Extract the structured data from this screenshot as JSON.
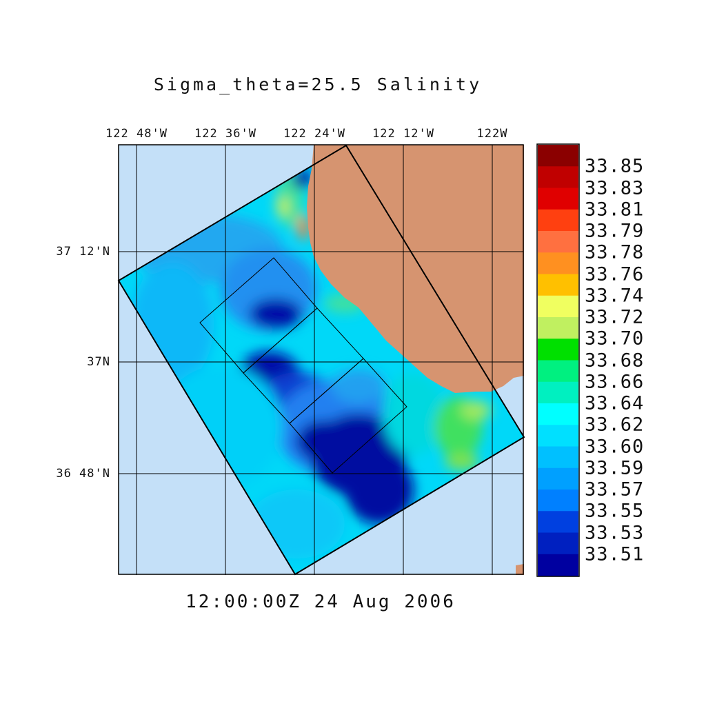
{
  "title": "Sigma_theta=25.5 Salinity",
  "timestamp": "12:00:00Z  24 Aug 2006",
  "lon_ticks": [
    "122 48'W",
    "122 36'W",
    "122 24'W",
    "122 12'W",
    "122W"
  ],
  "lat_ticks": [
    "37 12'N",
    "37N",
    "36 48'N"
  ],
  "colorbar": {
    "labels": [
      "33.85",
      "33.83",
      "33.81",
      "33.79",
      "33.78",
      "33.76",
      "33.74",
      "33.72",
      "33.70",
      "33.68",
      "33.66",
      "33.64",
      "33.62",
      "33.60",
      "33.59",
      "33.57",
      "33.55",
      "33.53",
      "33.51"
    ],
    "colors": [
      "#8b0000",
      "#c00000",
      "#e00000",
      "#ff4010",
      "#ff7040",
      "#ff9020",
      "#ffc000",
      "#f0ff60",
      "#c0f060",
      "#00e000",
      "#00f080",
      "#00f0c0",
      "#00ffff",
      "#00e0ff",
      "#00c0ff",
      "#00a0ff",
      "#0080ff",
      "#0040e0",
      "#0020c0",
      "#0000a0"
    ]
  },
  "map": {
    "ocean_color": "#c4e0f8",
    "land_color": "#d69470"
  }
}
